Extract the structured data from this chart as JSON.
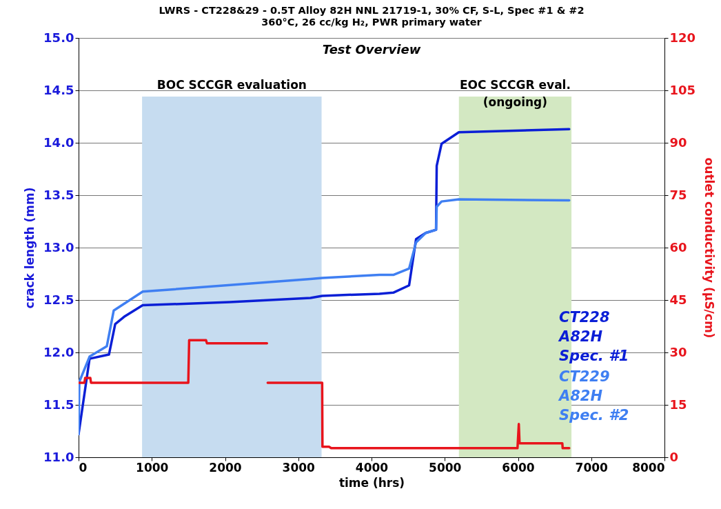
{
  "chart_data": {
    "type": "line",
    "title": "LWRS - CT228&29 - 0.5T Alloy 82H NNL 21719-1, 30% CF, S-L, Spec #1 & #2",
    "subtitle": "360°C, 26 cc/kg H₂, PWR primary water",
    "xlabel": "time (hrs)",
    "ylabel": "crack length (mm)",
    "y2label": "outlet conductivity (µS/cm)",
    "xlim": [
      0,
      8000
    ],
    "xticks": [
      0,
      1000,
      2000,
      3000,
      4000,
      5000,
      6000,
      7000,
      8000
    ],
    "ylim": [
      11,
      15
    ],
    "yticks": [
      {
        "value": 11,
        "label": "11.0"
      },
      {
        "value": 11.5,
        "label": "11.5"
      },
      {
        "value": 12,
        "label": "12.0"
      },
      {
        "value": 12.5,
        "label": "12.5"
      },
      {
        "value": 13,
        "label": "13.0"
      },
      {
        "value": 13.5,
        "label": "13.5"
      },
      {
        "value": 14,
        "label": "14.0"
      },
      {
        "value": 14.5,
        "label": "14.5"
      },
      {
        "value": 15,
        "label": "15.0"
      }
    ],
    "y2lim": [
      0,
      120
    ],
    "y2ticks": [
      0,
      15,
      30,
      45,
      60,
      75,
      90,
      105,
      120
    ],
    "grid": "y",
    "line_style": "solid",
    "annotations": [
      "Test Overview"
    ],
    "bands": [
      {
        "axis": "x",
        "from": 867,
        "to": 3318,
        "label": "BOC SCCGR evaluation",
        "color": "#c6dcf0"
      },
      {
        "axis": "x",
        "from": 5193,
        "to": 6730,
        "label": "EOC SCCGR eval. (ongoing)",
        "color": "#d3e8c2"
      }
    ],
    "series": [
      {
        "name": "CT228 A82H Spec. #1",
        "color": "#0b1fd6",
        "x": [
          0,
          150,
          415,
          500,
          622,
          876,
          2064,
          3166,
          3326,
          4108,
          4297,
          4513,
          4608,
          4740,
          4881,
          4890,
          4956,
          5192,
          6699
        ],
        "values": [
          11.22,
          11.94,
          11.98,
          12.27,
          12.34,
          12.45,
          12.48,
          12.52,
          12.54,
          12.56,
          12.57,
          12.64,
          13.08,
          13.14,
          13.17,
          13.78,
          13.99,
          14.1,
          14.13
        ]
      },
      {
        "name": "CT229 A82H Spec. #2",
        "color": "#3f7ff2",
        "x": [
          0,
          10,
          150,
          386,
          480,
          876,
          3166,
          3326,
          4108,
          4297,
          4513,
          4608,
          4740,
          4881,
          4890,
          4956,
          5192,
          6699
        ],
        "values": [
          11.22,
          11.72,
          11.96,
          12.06,
          12.4,
          12.58,
          12.7,
          12.71,
          12.74,
          12.74,
          12.8,
          13.05,
          13.14,
          13.17,
          13.39,
          13.44,
          13.46,
          13.45
        ]
      },
      {
        "axis": "y2",
        "color": "#e8141c",
        "x": [
          0,
          80,
          90,
          160,
          170,
          1498,
          1510,
          1740,
          1753,
          2572,
          2577,
          2582,
          3326,
          3330,
          3420,
          3449,
          5993,
          6011,
          6021,
          6605,
          6610,
          6699
        ],
        "values": [
          21.3,
          21.3,
          22.7,
          22.7,
          21.3,
          21.3,
          33.5,
          33.5,
          32.6,
          32.6,
          null,
          21.3,
          21.3,
          3.0,
          3.0,
          2.6,
          2.6,
          9.5,
          4.0,
          4.0,
          2.6,
          2.6
        ]
      }
    ]
  }
}
